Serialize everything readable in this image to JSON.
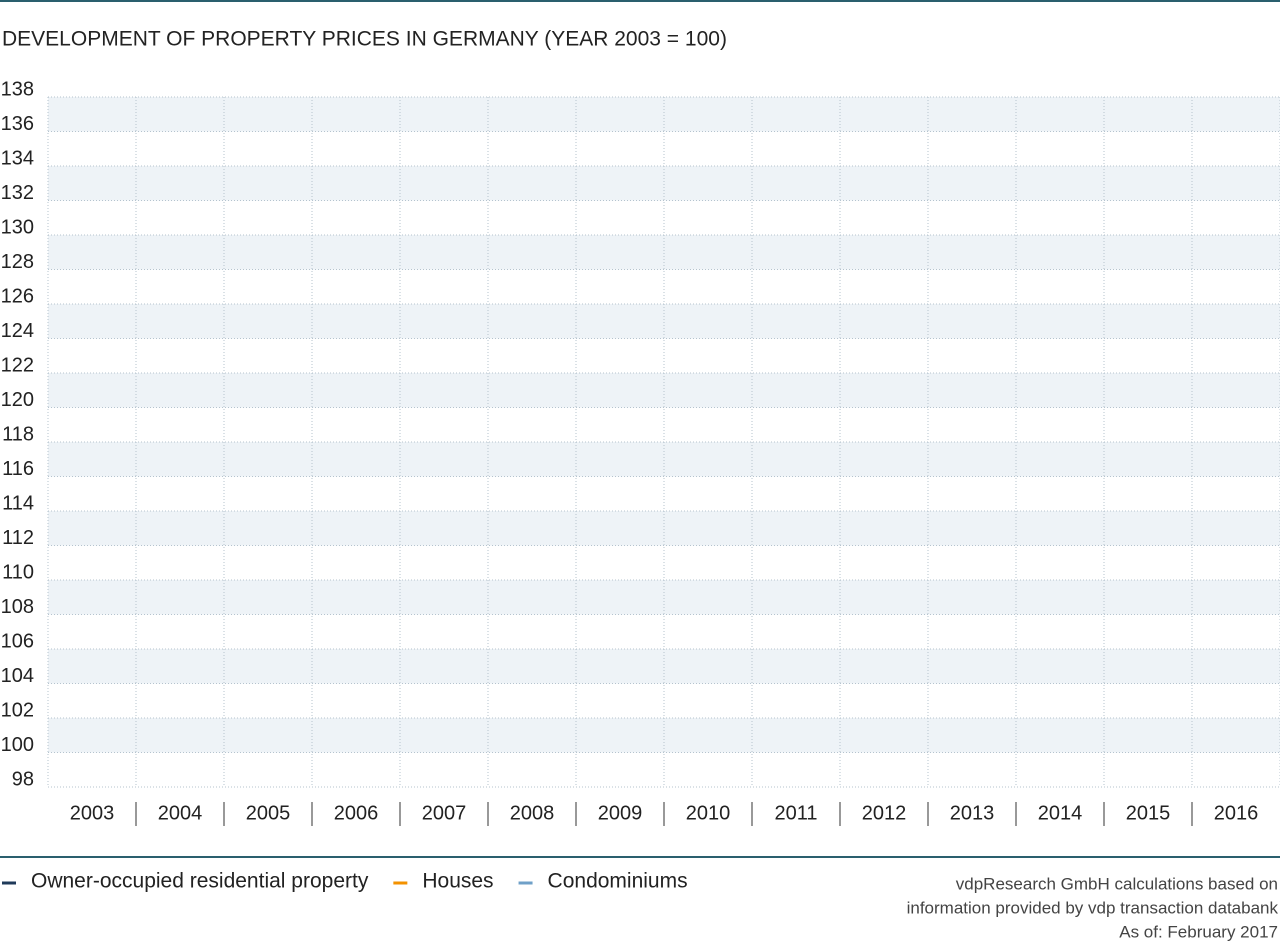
{
  "chart_data": {
    "type": "line",
    "title": "DEVELOPMENT OF PROPERTY PRICES IN GERMANY (YEAR 2003 = 100)",
    "categories": [
      "2003",
      "2004",
      "2005",
      "2006",
      "2007",
      "2008",
      "2009",
      "2010",
      "2011",
      "2012",
      "2013",
      "2014",
      "2015",
      "2016"
    ],
    "series": [
      {
        "name": "Owner-occupied residential property",
        "color": "#1f3a5a",
        "values": [
          null,
          null,
          null,
          null,
          null,
          null,
          null,
          null,
          null,
          null,
          null,
          null,
          null,
          null
        ]
      },
      {
        "name": "Houses",
        "color": "#f39200",
        "values": [
          null,
          null,
          null,
          null,
          null,
          null,
          null,
          null,
          null,
          null,
          null,
          null,
          null,
          null
        ]
      },
      {
        "name": "Condominiums",
        "color": "#6fa0c8",
        "values": [
          null,
          null,
          null,
          null,
          null,
          null,
          null,
          null,
          null,
          null,
          null,
          null,
          null,
          null
        ]
      }
    ],
    "ylim": [
      98,
      138
    ],
    "yticks": [
      98,
      100,
      102,
      104,
      106,
      108,
      110,
      112,
      114,
      116,
      118,
      120,
      122,
      124,
      126,
      128,
      130,
      132,
      134,
      136,
      138
    ],
    "grid": true,
    "source": [
      "vdpResearch GmbH calculations based on",
      "information provided by vdp transaction databank",
      "As of: February 2017"
    ]
  }
}
